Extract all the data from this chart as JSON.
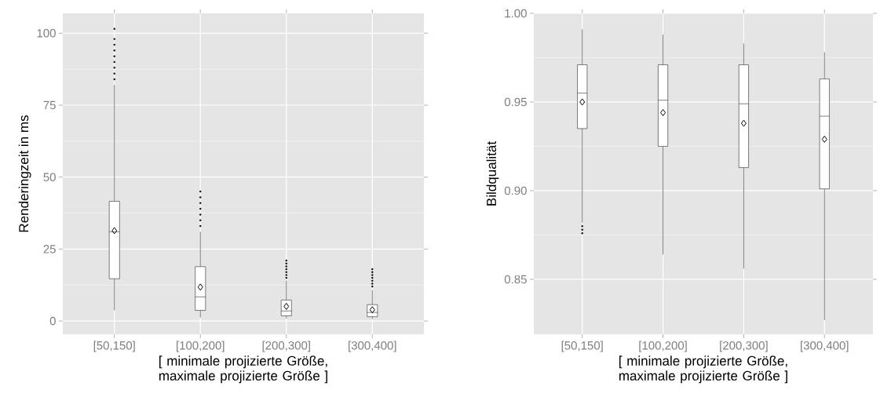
{
  "chart_data": [
    {
      "type": "box",
      "categories": [
        "[50,150]",
        "[100,200]",
        "[200,300]",
        "[300,400]"
      ],
      "xlabel": "[ minimale projizierte Größe, maximale projizierte Größe ]",
      "ylabel": "Renderingzeit in ms",
      "ylim": [
        -4.6,
        106.9
      ],
      "yticks": [
        0,
        25,
        50,
        75,
        100
      ],
      "grid": true,
      "boxes": [
        {
          "low": 3.7,
          "q1": 14.7,
          "median": 31,
          "q3": 41.6,
          "high": 82,
          "mean": 31.4,
          "outliers": [
            84,
            86,
            88,
            90,
            92,
            94,
            96,
            98,
            101.5
          ]
        },
        {
          "low": 1.2,
          "q1": 3.7,
          "median": 8.4,
          "q3": 18.9,
          "high": 31,
          "mean": 11.8,
          "outliers": [
            33,
            35,
            37,
            39,
            41,
            43,
            45
          ]
        },
        {
          "low": 0.9,
          "q1": 1.8,
          "median": 3.5,
          "q3": 7.3,
          "high": 14,
          "mean": 5.1,
          "outliers": [
            15,
            16,
            17,
            18,
            19,
            20,
            21
          ]
        },
        {
          "low": 0.7,
          "q1": 1.5,
          "median": 3,
          "q3": 5.7,
          "high": 10.7,
          "mean": 3.9,
          "outliers": [
            12,
            13,
            14,
            15,
            16,
            17,
            18
          ]
        }
      ]
    },
    {
      "type": "box",
      "categories": [
        "[50,150]",
        "[100,200]",
        "[200,300]",
        "[300,400]"
      ],
      "xlabel": "[ minimale projizierte Größe, maximale projizierte Größe ]",
      "ylabel": "Bildqualität",
      "ylim": [
        0.819,
        1.0
      ],
      "yticks": [
        0.85,
        {
          "value": 0.9,
          "label": "0.90"
        },
        0.95,
        {
          "value": 1,
          "label": "1.00"
        }
      ],
      "grid": true,
      "boxes": [
        {
          "low": 0.882,
          "q1": 0.935,
          "median": 0.955,
          "q3": 0.971,
          "high": 0.991,
          "mean": 0.95,
          "outliers": [
            0.876,
            0.878,
            0.88
          ]
        },
        {
          "low": 0.864,
          "q1": 0.925,
          "median": 0.951,
          "q3": 0.971,
          "high": 0.988,
          "mean": 0.944
        },
        {
          "low": 0.856,
          "q1": 0.913,
          "median": 0.949,
          "q3": 0.971,
          "high": 0.983,
          "mean": 0.938
        },
        {
          "low": 0.827,
          "q1": 0.901,
          "median": 0.942,
          "q3": 0.963,
          "high": 0.978,
          "mean": 0.929
        }
      ]
    }
  ]
}
